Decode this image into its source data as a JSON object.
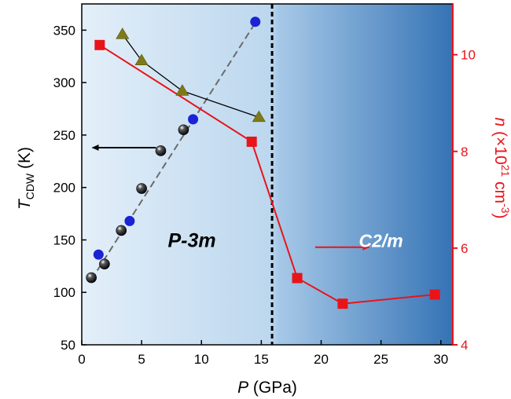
{
  "chart_data": {
    "type": "scatter",
    "title": "",
    "xlabel": {
      "italic": "P",
      "rest": " (GPa)"
    },
    "ylabel_left": {
      "italic": "T",
      "sub": "CDW",
      "rest": " (K)"
    },
    "ylabel_right": {
      "italic": "n",
      "pre": " (×10",
      "sup1": "21",
      "mid": " cm",
      "sup2": "-3",
      "post": ")"
    },
    "xlim": [
      0,
      31
    ],
    "xticks": [
      0,
      5,
      10,
      15,
      20,
      25,
      30
    ],
    "ylim_left": [
      50,
      375
    ],
    "yticks_left": [
      50,
      100,
      150,
      200,
      250,
      300,
      350
    ],
    "ylim_right": [
      4,
      11.05
    ],
    "yticks_right": [
      4,
      6,
      8,
      10
    ],
    "phase_boundary_x": 15.9,
    "regions": [
      {
        "label": "P-3m",
        "x": 9.2,
        "y_left": 150
      },
      {
        "label": "C2/m",
        "x": 25.0,
        "y_left": 150
      }
    ],
    "series": [
      {
        "marker": "black-sphere",
        "axis": "left",
        "points": [
          [
            0.8,
            114
          ],
          [
            1.9,
            127
          ],
          [
            3.3,
            159
          ],
          [
            5.0,
            199
          ],
          [
            6.6,
            235
          ],
          [
            8.5,
            255
          ]
        ]
      },
      {
        "marker": "blue-circle",
        "axis": "left",
        "points": [
          [
            1.4,
            136
          ],
          [
            4.0,
            168
          ],
          [
            9.3,
            265
          ],
          [
            14.5,
            358
          ]
        ]
      },
      {
        "marker": "olive-triangle",
        "axis": "left",
        "connected": true,
        "points": [
          [
            3.4,
            346
          ],
          [
            5.0,
            321
          ],
          [
            8.4,
            292
          ],
          [
            14.8,
            267
          ]
        ]
      },
      {
        "marker": "red-square",
        "axis": "right",
        "connected": true,
        "points": [
          [
            1.5,
            10.2
          ],
          [
            14.2,
            8.2
          ],
          [
            18.0,
            5.38
          ],
          [
            21.8,
            4.85
          ],
          [
            29.5,
            5.04
          ]
        ]
      }
    ],
    "dashed_trend_line": {
      "axis": "left",
      "from": [
        0.8,
        112
      ],
      "to": [
        14.5,
        357
      ]
    },
    "axis_arrows": [
      {
        "direction": "left",
        "axis": "left",
        "x_from": 6.2,
        "x_to": 0.9,
        "y": 238,
        "color": "#000000"
      },
      {
        "direction": "right",
        "axis": "left",
        "x_from": 19.5,
        "x_to": 24.0,
        "y": 143,
        "color": "#e8141a"
      }
    ],
    "colors": {
      "black_series": "#111111",
      "blue_series": "#1a23d6",
      "olive_series": "#7f7a19",
      "red_series": "#e8141a",
      "right_axis": "#e8141a",
      "background_left": "#dbeaf6",
      "background_right_end": "#3a7ab9"
    }
  }
}
